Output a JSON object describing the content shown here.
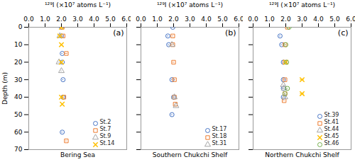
{
  "chart_data": [
    {
      "type": "scatter",
      "title": "Bering Sea",
      "annotations": [
        "(a)"
      ],
      "x_label": "¹²⁹I (×10⁷ atoms L⁻¹)",
      "y_label": "Depth (m)",
      "series": [
        {
          "name": "St.2",
          "color": "#4472C4",
          "marker": "circle",
          "x": [
            2.0,
            2.0,
            2.05,
            2.05,
            2.1,
            2.1,
            2.05
          ],
          "values": [
            0,
            5,
            15,
            20,
            30,
            40,
            60
          ],
          "xerr": [
            0.04,
            0.04,
            0.04,
            0.04,
            0.04,
            0.04,
            0.04
          ]
        },
        {
          "name": "St.7",
          "color": "#ED7D31",
          "marker": "square",
          "x": [
            2.05,
            2.1,
            2.3,
            2.15,
            2.3
          ],
          "values": [
            0,
            5,
            15,
            40,
            65
          ],
          "xerr": [
            0.04,
            0.04,
            0.08,
            0.04,
            0.04
          ]
        },
        {
          "name": "St.9",
          "color": "#A5A5A5",
          "marker": "triangle",
          "x": [
            1.9,
            1.85,
            2.0
          ],
          "values": [
            5,
            20,
            25
          ],
          "xerr": [
            0.04,
            0.04,
            0.04
          ]
        },
        {
          "name": "St.14",
          "color": "#FFC000",
          "marker": "x",
          "x": [
            2.0,
            1.9,
            2.0,
            2.0,
            2.0,
            2.05
          ],
          "values": [
            0,
            5,
            10,
            20,
            40,
            44
          ],
          "xerr": [
            0.04,
            0.04,
            0.04,
            0.04,
            0.04,
            0.04
          ]
        }
      ],
      "xlim": [
        0,
        6
      ],
      "ylim": [
        70,
        0
      ],
      "xticks": [
        0,
        1,
        2,
        3,
        4,
        5,
        6
      ],
      "yticks": [
        0,
        10,
        20,
        30,
        40,
        50,
        60,
        70
      ],
      "legend": "lower right"
    },
    {
      "type": "scatter",
      "title": "Southern Chukchi Shelf",
      "annotations": [
        "(b)"
      ],
      "x_label": "¹²⁹I (×10⁷ atoms L⁻¹)",
      "series": [
        {
          "name": "St.17",
          "color": "#4472C4",
          "marker": "circle",
          "x": [
            1.95,
            1.65,
            1.7,
            1.9,
            2.0,
            1.9
          ],
          "values": [
            0,
            5,
            10,
            30,
            40,
            50
          ],
          "xerr": [
            0.04,
            0.04,
            0.04,
            0.04,
            0.04,
            0.04
          ]
        },
        {
          "name": "St.18",
          "color": "#ED7D31",
          "marker": "square",
          "x": [
            1.95,
            1.95,
            2.0,
            2.05,
            2.05,
            2.1
          ],
          "values": [
            5,
            10,
            20,
            30,
            40,
            44
          ],
          "xerr": [
            0.04,
            0.04,
            0.06,
            0.06,
            0.04,
            0.04
          ]
        },
        {
          "name": "St.31",
          "color": "#A5A5A5",
          "marker": "triangle",
          "x": [
            1.9,
            2.05,
            2.15
          ],
          "values": [
            10,
            40,
            45
          ],
          "xerr": [
            0.04,
            0.04,
            0.04
          ]
        }
      ],
      "xlim": [
        0,
        6
      ],
      "ylim": [
        70,
        0
      ],
      "xticks": [
        0,
        1,
        2,
        3,
        4,
        5,
        6
      ],
      "yticks": [
        0,
        10,
        20,
        30,
        40,
        50,
        60,
        70
      ],
      "tick_labels": "x",
      "legend": "lower right"
    },
    {
      "type": "scatter",
      "title": "Northern Chukchi Shelf",
      "annotations": [
        "(c)"
      ],
      "x_label": "¹²⁹I (×10⁷ atoms L⁻¹)",
      "series": [
        {
          "name": "St.39",
          "color": "#4472C4",
          "marker": "circle",
          "x": [
            1.65,
            1.75,
            1.85,
            1.85,
            1.85,
            1.85
          ],
          "values": [
            5,
            10,
            20,
            30,
            35,
            40
          ],
          "xerr": [
            0.04,
            0.04,
            0.04,
            0.04,
            0.04,
            0.04
          ]
        },
        {
          "name": "St.41",
          "color": "#ED7D31",
          "marker": "square",
          "x": [
            2.1,
            1.95,
            1.95,
            1.95,
            1.95,
            1.9
          ],
          "values": [
            0,
            10,
            20,
            30,
            38,
            42
          ],
          "xerr": [
            0.04,
            0.04,
            0.04,
            0.04,
            0.04,
            0.04
          ]
        },
        {
          "name": "St.44",
          "color": "#A5A5A5",
          "marker": "triangle",
          "x": [
            1.85,
            1.9,
            1.95
          ],
          "values": [
            33,
            35,
            40
          ],
          "xerr": [
            0.04,
            0.04,
            0.04
          ]
        },
        {
          "name": "St.45",
          "color": "#FFC000",
          "marker": "x",
          "x": [
            2.0,
            3.0,
            3.0
          ],
          "values": [
            20,
            30,
            38
          ],
          "xerr": [
            0.04,
            0.12,
            0.12
          ]
        },
        {
          "name": "St.46",
          "color": "#70AD47",
          "marker": "circle",
          "x": [
            2.2,
            2.0,
            2.05,
            2.1,
            1.95
          ],
          "values": [
            0,
            10,
            20,
            35,
            38
          ],
          "xerr": [
            0.04,
            0.04,
            0.04,
            0.04,
            0.04
          ]
        }
      ],
      "xlim": [
        0,
        6
      ],
      "ylim": [
        70,
        0
      ],
      "xticks": [
        0,
        1,
        2,
        3,
        4,
        5,
        6
      ],
      "yticks": [
        0,
        10,
        20,
        30,
        40,
        50,
        60,
        70
      ],
      "tick_labels": "x",
      "legend": "lower right"
    }
  ]
}
